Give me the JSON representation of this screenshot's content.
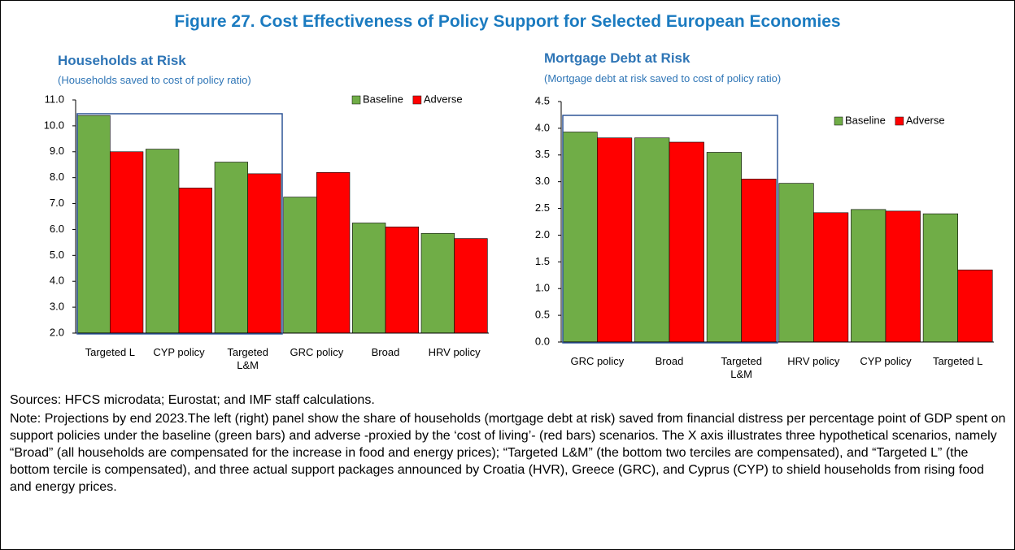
{
  "figure_title": "Figure 27. Cost Effectiveness of Policy Support for Selected European Economies",
  "chart_data": [
    {
      "type": "bar",
      "title": "Households at Risk",
      "subtitle": "(Households saved to cost of policy ratio)",
      "categories": [
        "Targeted L",
        "CYP policy",
        "Targeted L&M",
        "GRC policy",
        "Broad",
        "HRV policy"
      ],
      "series": [
        {
          "name": "Baseline",
          "color": "#70ad47",
          "values": [
            10.4,
            9.1,
            8.6,
            7.25,
            6.25,
            5.85
          ]
        },
        {
          "name": "Adverse",
          "color": "#ff0000",
          "values": [
            9.0,
            7.6,
            8.15,
            8.2,
            6.1,
            5.65
          ]
        }
      ],
      "ylim": [
        2,
        11
      ],
      "yticks": [
        {
          "value": 2,
          "label": "2.0"
        },
        {
          "value": 3,
          "label": "3.0"
        },
        {
          "value": 4,
          "label": "4.0"
        },
        {
          "value": 5,
          "label": "5.0"
        },
        {
          "value": 6,
          "label": "6.0"
        },
        {
          "value": 7,
          "label": "7.0"
        },
        {
          "value": 8,
          "label": "8.0"
        },
        {
          "value": 9,
          "label": "9.0"
        },
        {
          "value": 10,
          "label": "10.0"
        },
        {
          "value": 11,
          "label": "11.0"
        }
      ],
      "grid": false,
      "legend": "upper right"
    },
    {
      "type": "bar",
      "title": "Mortgage Debt at Risk",
      "subtitle": "(Mortgage debt at risk saved to cost of policy ratio)",
      "categories": [
        "GRC policy",
        "Broad",
        "Targeted L&M",
        "HRV policy",
        "CYP policy",
        "Targeted L"
      ],
      "series": [
        {
          "name": "Baseline",
          "color": "#70ad47",
          "values": [
            3.93,
            3.82,
            3.55,
            2.97,
            2.48,
            2.4
          ]
        },
        {
          "name": "Adverse",
          "color": "#ff0000",
          "values": [
            3.82,
            3.74,
            3.05,
            2.42,
            2.45,
            1.35
          ]
        }
      ],
      "ylim": [
        0,
        4.5
      ],
      "yticks": [
        {
          "value": 0,
          "label": "0.0"
        },
        0.5,
        {
          "value": 1,
          "label": "1.0"
        },
        1.5,
        {
          "value": 2,
          "label": "2.0"
        },
        2.5,
        {
          "value": 3,
          "label": "3.0"
        },
        3.5,
        {
          "value": 4,
          "label": "4.0"
        },
        4.5
      ],
      "grid": false,
      "legend": "upper right"
    }
  ],
  "sources": "Sources: HFCS microdata; Eurostat; and IMF staff calculations.",
  "note": "Note: Projections by end 2023.The left (right) panel show the share of households (mortgage debt at risk) saved from financial distress per percentage point of GDP spent on support policies under the baseline (green bars) and adverse -proxied by the ‘cost of living’- (red bars) scenarios. The X axis illustrates three hypothetical scenarios, namely “Broad” (all households are compensated for the increase in food and energy prices); “Targeted L&M” (the bottom two terciles are compensated), and “Targeted L” (the bottom tercile is compensated), and three actual support packages announced by Croatia (HVR), Greece (GRC), and Cyprus (CYP) to shield households from rising food and energy prices."
}
